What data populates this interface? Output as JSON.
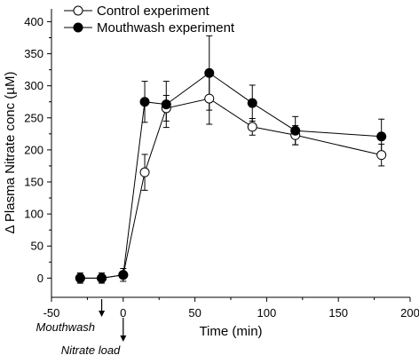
{
  "chart_data": {
    "type": "line",
    "xlabel": "Time (min)",
    "ylabel": "Δ Plasma Nitrate conc (µM)",
    "xlim": [
      -50,
      200
    ],
    "ylim": [
      -30,
      420
    ],
    "x_ticks": [
      -50,
      0,
      50,
      100,
      150,
      200
    ],
    "y_ticks": [
      0,
      50,
      100,
      150,
      200,
      250,
      300,
      350,
      400
    ],
    "legend_position": "top-left",
    "grid": false,
    "series": [
      {
        "name": "Control experiment",
        "marker": "open-circle",
        "x": [
          -30,
          -15,
          0,
          15,
          30,
          60,
          90,
          120,
          180
        ],
        "y": [
          0,
          0,
          5,
          165,
          265,
          280,
          236,
          223,
          192
        ],
        "err": [
          6,
          6,
          5,
          28,
          20,
          40,
          13,
          15,
          17
        ]
      },
      {
        "name": "Mouthwash experiment",
        "marker": "filled-circle",
        "x": [
          -30,
          -15,
          0,
          15,
          30,
          60,
          90,
          120,
          180
        ],
        "y": [
          0,
          0,
          5,
          275,
          271,
          320,
          273,
          230,
          221
        ],
        "err": [
          8,
          8,
          10,
          32,
          36,
          58,
          28,
          22,
          27
        ]
      }
    ],
    "annotations": [
      {
        "text": "Mouthwash",
        "at_x": -15
      },
      {
        "text": "Nitrate load",
        "at_x": 0
      }
    ]
  }
}
